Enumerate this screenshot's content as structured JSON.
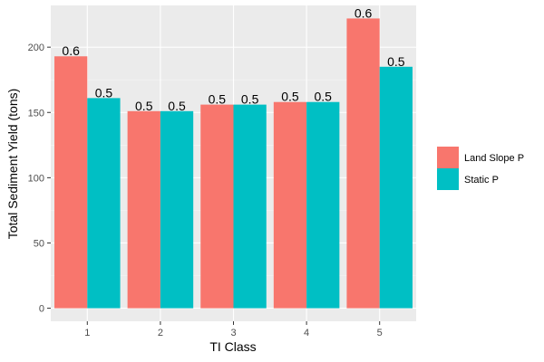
{
  "chart_data": {
    "type": "bar",
    "xlabel": "TI Class",
    "ylabel": "Total Sediment Yield (tons)",
    "categories": [
      "1",
      "2",
      "3",
      "4",
      "5"
    ],
    "ylim": [
      -10,
      232
    ],
    "yticks": [
      0,
      50,
      100,
      150,
      200
    ],
    "grid": true,
    "legend_position": "right",
    "series": [
      {
        "name": "Land Slope P",
        "color": "#F8766D",
        "values": [
          193,
          151,
          156,
          158,
          222
        ],
        "labels": [
          "0.6",
          "0.5",
          "0.5",
          "0.5",
          "0.6"
        ]
      },
      {
        "name": "Static P",
        "color": "#00BFC4",
        "values": [
          161,
          151,
          156,
          158,
          185
        ],
        "labels": [
          "0.5",
          "0.5",
          "0.5",
          "0.5",
          "0.5"
        ]
      }
    ]
  }
}
